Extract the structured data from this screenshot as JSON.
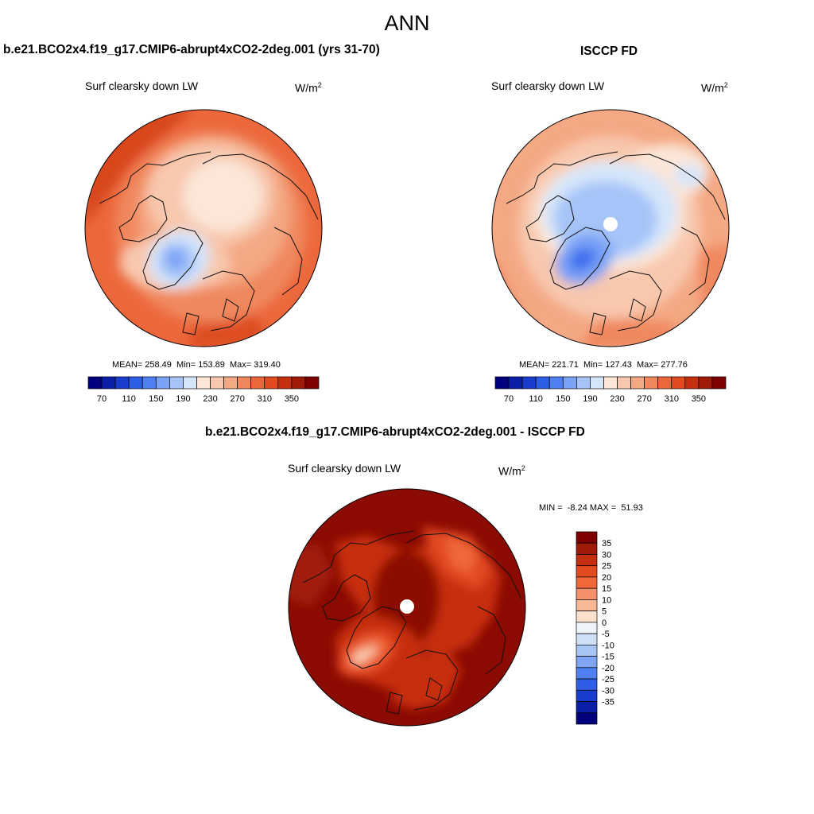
{
  "main_title": "ANN",
  "panels": [
    {
      "title": "b.e21.BCO2x4.f19_g17.CMIP6-abrupt4xCO2-2deg.001 (yrs 31-70)",
      "variable": "Surf clearsky down LW",
      "units_base": "W/m",
      "units_exp": "2",
      "stats": "MEAN= 258.49  Min= 153.89  Max= 319.40",
      "mean": 258.49,
      "min": 153.89,
      "max": 319.4
    },
    {
      "title": "ISCCP FD",
      "variable": "Surf clearsky down LW",
      "units_base": "W/m",
      "units_exp": "2",
      "stats": "MEAN= 221.71  Min= 127.43  Max= 277.76",
      "mean": 221.71,
      "min": 127.43,
      "max": 277.76
    },
    {
      "title": "b.e21.BCO2x4.f19_g17.CMIP6-abrupt4xCO2-2deg.001 - ISCCP FD",
      "variable": "Surf clearsky down LW",
      "units_base": "W/m",
      "units_exp": "2",
      "stats": "MIN =  -8.24 MAX =  51.93",
      "min": -8.24,
      "max": 51.93
    }
  ],
  "abs_colorbar": {
    "colors": [
      "#00007f",
      "#0a1ea8",
      "#1a3ccc",
      "#2e5ee6",
      "#4f80f2",
      "#7aa2f6",
      "#a6c4f8",
      "#d6e6fa",
      "#fbe6d8",
      "#f8c8ae",
      "#f4a884",
      "#f0885e",
      "#ec683c",
      "#e24a20",
      "#c62e10",
      "#a01a08",
      "#7f0000"
    ],
    "ticks": [
      "70",
      "110",
      "150",
      "190",
      "230",
      "270",
      "310",
      "350"
    ]
  },
  "diff_colorbar": {
    "colors": [
      "#7f0000",
      "#a01a08",
      "#c62e10",
      "#e24a20",
      "#f0683a",
      "#f4906a",
      "#f8b898",
      "#fbe0cc",
      "#eef4fa",
      "#cfe0f6",
      "#a8c6f4",
      "#7ea6f2",
      "#4f80f2",
      "#2e5ee6",
      "#1a3ccc",
      "#0a1ea8",
      "#00007f"
    ],
    "ticks": [
      "35",
      "30",
      "25",
      "20",
      "15",
      "10",
      "5",
      "0",
      "-5",
      "-10",
      "-15",
      "-20",
      "-25",
      "-30",
      "-35"
    ]
  }
}
